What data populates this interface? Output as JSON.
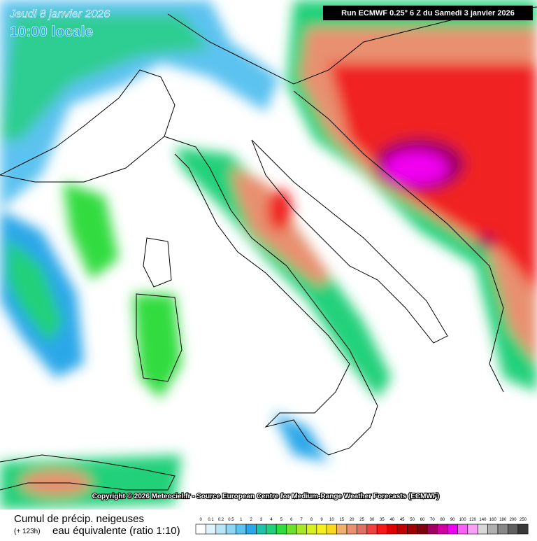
{
  "header": {
    "date": "Jeudi 8 janvier 2026",
    "time": "10:00 locale",
    "run": "Run ECMWF 0.25° 6 Z du Samedi 3 janvier 2026"
  },
  "copyright": "Copyright © 2026 Meteociel.fr - Source European Centre for Medium-Range Weather Forecasts (ECMWF)",
  "legend": {
    "title": "Cumul de précip. neigeuses",
    "lead": "(+ 123h)",
    "subtitle": "eau équivalente (ratio 1:10)",
    "items": [
      {
        "label": "0",
        "color": "#ffffff"
      },
      {
        "label": "0.1",
        "color": "#dff3fb"
      },
      {
        "label": "0.2",
        "color": "#b8e6f7"
      },
      {
        "label": "0.5",
        "color": "#8fd6f3"
      },
      {
        "label": "1",
        "color": "#5cc2ef"
      },
      {
        "label": "2",
        "color": "#2aa7e8"
      },
      {
        "label": "3",
        "color": "#1fc4a8"
      },
      {
        "label": "4",
        "color": "#22d07a"
      },
      {
        "label": "5",
        "color": "#30dc40"
      },
      {
        "label": "6",
        "color": "#6ee030"
      },
      {
        "label": "7",
        "color": "#a8e828"
      },
      {
        "label": "8",
        "color": "#d8f020"
      },
      {
        "label": "9",
        "color": "#f4f020"
      },
      {
        "label": "10",
        "color": "#f8d820"
      },
      {
        "label": "15",
        "color": "#f0b070"
      },
      {
        "label": "20",
        "color": "#e89070"
      },
      {
        "label": "25",
        "color": "#e07060"
      },
      {
        "label": "30",
        "color": "#f04040"
      },
      {
        "label": "35",
        "color": "#f81818"
      },
      {
        "label": "40",
        "color": "#e00000"
      },
      {
        "label": "45",
        "color": "#c00000"
      },
      {
        "label": "50",
        "color": "#a00000"
      },
      {
        "label": "60",
        "color": "#800010"
      },
      {
        "label": "70",
        "color": "#a00060"
      },
      {
        "label": "80",
        "color": "#d000a0"
      },
      {
        "label": "90",
        "color": "#f000f0"
      },
      {
        "label": "100",
        "color": "#f860f8"
      },
      {
        "label": "120",
        "color": "#f8a0f8"
      },
      {
        "label": "140",
        "color": "#d8d8d8"
      },
      {
        "label": "160",
        "color": "#b0b0b0"
      },
      {
        "label": "180",
        "color": "#888888"
      },
      {
        "label": "200",
        "color": "#606060"
      },
      {
        "label": "250",
        "color": "#383838"
      }
    ]
  }
}
